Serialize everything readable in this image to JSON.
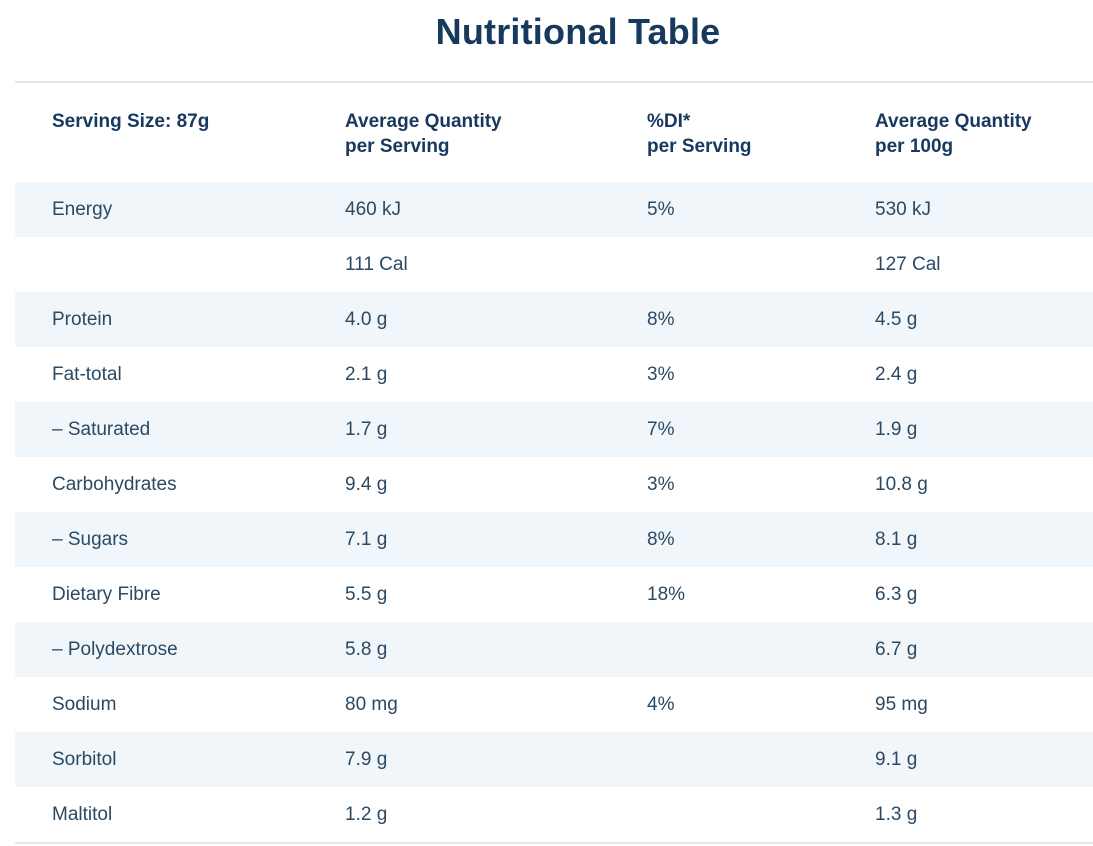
{
  "title": "Nutritional Table",
  "colors": {
    "heading_navy": "#16395d",
    "body_text_navy": "#2b4963",
    "row_stripe_blue": "#f1f6fa",
    "divider_gray": "#e3e7ea",
    "background": "#ffffff"
  },
  "table": {
    "header": {
      "col1": {
        "line1": "Serving Size: 87g",
        "line2": ""
      },
      "col2": {
        "line1": "Average Quantity",
        "line2": "per Serving"
      },
      "col3": {
        "line1": "%DI*",
        "line2": "per Serving"
      },
      "col4": {
        "line1": "Average Quantity",
        "line2": "per 100g"
      }
    },
    "rows": [
      {
        "nutrient": "Energy",
        "per_serving": "460 kJ",
        "di_per_serving": "5%",
        "per_100g": "530 kJ"
      },
      {
        "nutrient": "",
        "per_serving": "111 Cal",
        "di_per_serving": "",
        "per_100g": "127 Cal"
      },
      {
        "nutrient": "Protein",
        "per_serving": "4.0 g",
        "di_per_serving": "8%",
        "per_100g": "4.5 g"
      },
      {
        "nutrient": "Fat-total",
        "per_serving": "2.1 g",
        "di_per_serving": "3%",
        "per_100g": "2.4 g"
      },
      {
        "nutrient": "– Saturated",
        "per_serving": "1.7 g",
        "di_per_serving": "7%",
        "per_100g": "1.9 g"
      },
      {
        "nutrient": "Carbohydrates",
        "per_serving": "9.4 g",
        "di_per_serving": "3%",
        "per_100g": "10.8 g"
      },
      {
        "nutrient": "– Sugars",
        "per_serving": "7.1 g",
        "di_per_serving": "8%",
        "per_100g": "8.1 g"
      },
      {
        "nutrient": "Dietary Fibre",
        "per_serving": "5.5 g",
        "di_per_serving": "18%",
        "per_100g": "6.3 g"
      },
      {
        "nutrient": "– Polydextrose",
        "per_serving": "5.8 g",
        "di_per_serving": "",
        "per_100g": "6.7 g"
      },
      {
        "nutrient": "Sodium",
        "per_serving": "80 mg",
        "di_per_serving": "4%",
        "per_100g": "95 mg"
      },
      {
        "nutrient": "Sorbitol",
        "per_serving": "7.9 g",
        "di_per_serving": "",
        "per_100g": "9.1 g"
      },
      {
        "nutrient": "Maltitol",
        "per_serving": "1.2 g",
        "di_per_serving": "",
        "per_100g": "1.3 g"
      }
    ]
  },
  "chart_data": {
    "type": "table",
    "title": "Nutritional Table",
    "columns": [
      "Serving Size: 87g",
      "Average Quantity per Serving",
      "%DI* per Serving",
      "Average Quantity per 100g"
    ],
    "rows": [
      [
        "Energy",
        "460 kJ",
        "5%",
        "530 kJ"
      ],
      [
        "",
        "111 Cal",
        "",
        "127 Cal"
      ],
      [
        "Protein",
        "4.0 g",
        "8%",
        "4.5 g"
      ],
      [
        "Fat-total",
        "2.1 g",
        "3%",
        "2.4 g"
      ],
      [
        "– Saturated",
        "1.7 g",
        "7%",
        "1.9 g"
      ],
      [
        "Carbohydrates",
        "9.4 g",
        "3%",
        "10.8 g"
      ],
      [
        "– Sugars",
        "7.1 g",
        "8%",
        "8.1 g"
      ],
      [
        "Dietary Fibre",
        "5.5 g",
        "18%",
        "6.3 g"
      ],
      [
        "– Polydextrose",
        "5.8 g",
        "",
        "6.7 g"
      ],
      [
        "Sodium",
        "80 mg",
        "4%",
        "95 mg"
      ],
      [
        "Sorbitol",
        "7.9 g",
        "",
        "9.1 g"
      ],
      [
        "Maltitol",
        "1.2 g",
        "",
        "1.3 g"
      ]
    ],
    "layout": {
      "row_striping": "alternating light blue starting at first data row",
      "header_divider": true,
      "bottom_divider": true
    }
  }
}
